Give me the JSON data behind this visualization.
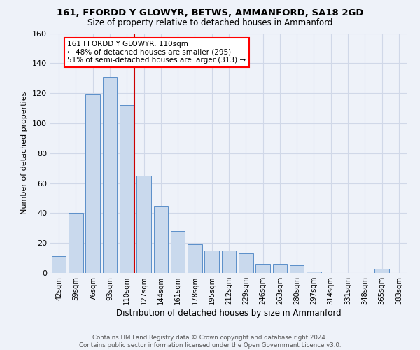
{
  "title": "161, FFORDD Y GLOWYR, BETWS, AMMANFORD, SA18 2GD",
  "subtitle": "Size of property relative to detached houses in Ammanford",
  "xlabel": "Distribution of detached houses by size in Ammanford",
  "ylabel": "Number of detached properties",
  "bar_labels": [
    "42sqm",
    "59sqm",
    "76sqm",
    "93sqm",
    "110sqm",
    "127sqm",
    "144sqm",
    "161sqm",
    "178sqm",
    "195sqm",
    "212sqm",
    "229sqm",
    "246sqm",
    "263sqm",
    "280sqm",
    "297sqm",
    "314sqm",
    "331sqm",
    "348sqm",
    "365sqm",
    "383sqm"
  ],
  "bar_values": [
    11,
    40,
    119,
    131,
    112,
    65,
    45,
    28,
    19,
    15,
    15,
    13,
    6,
    6,
    5,
    1,
    0,
    0,
    0,
    3,
    0
  ],
  "bar_color": "#c9d9ed",
  "bar_edge_color": "#5b8fc9",
  "red_line_index": 4,
  "annotation_line1": "161 FFORDD Y GLOWYR: 110sqm",
  "annotation_line2": "← 48% of detached houses are smaller (295)",
  "annotation_line3": "51% of semi-detached houses are larger (313) →",
  "annotation_box_color": "white",
  "annotation_box_edge_color": "red",
  "red_line_color": "#cc0000",
  "ylim": [
    0,
    160
  ],
  "yticks": [
    0,
    20,
    40,
    60,
    80,
    100,
    120,
    140,
    160
  ],
  "grid_color": "#d0d8e8",
  "footer_line1": "Contains HM Land Registry data © Crown copyright and database right 2024.",
  "footer_line2": "Contains public sector information licensed under the Open Government Licence v3.0.",
  "bg_color": "#eef2f9"
}
